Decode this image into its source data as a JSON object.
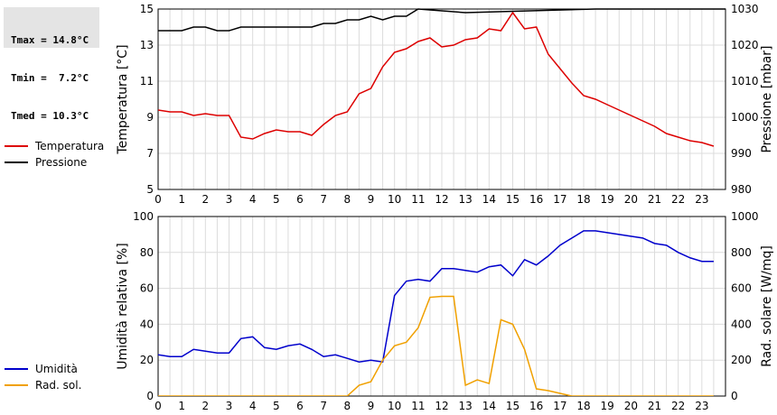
{
  "stats": {
    "tmax": "Tmax = 14.8°C",
    "tmin": "Tmin =  7.2°C",
    "tmed": "Tmed = 10.3°C"
  },
  "legend_top": [
    {
      "label": "Temperatura",
      "color": "#dd0000"
    },
    {
      "label": "Pressione",
      "color": "#000000"
    }
  ],
  "legend_bottom": [
    {
      "label": "Umidità",
      "color": "#0000cc"
    },
    {
      "label": "Rad. sol.",
      "color": "#f0a000"
    }
  ],
  "chart_data": [
    {
      "type": "line",
      "xlim": [
        0,
        24
      ],
      "x_ticks": [
        0,
        1,
        2,
        3,
        4,
        5,
        6,
        7,
        8,
        9,
        10,
        11,
        12,
        13,
        14,
        15,
        16,
        17,
        18,
        19,
        20,
        21,
        22,
        23
      ],
      "ylabel": "Temperatura [°C]",
      "ylim": [
        5,
        15
      ],
      "y_ticks": [
        5,
        7,
        9,
        11,
        13,
        15
      ],
      "y2label": "Pressione [mbar]",
      "y2lim": [
        980,
        1030
      ],
      "y2_ticks": [
        980,
        990,
        1000,
        1010,
        1020,
        1030
      ],
      "grid": true,
      "series": [
        {
          "name": "Temperatura",
          "axis": "left",
          "color": "#dd0000",
          "x": [
            0,
            0.5,
            1,
            1.5,
            2,
            2.5,
            3,
            3.5,
            4,
            4.5,
            5,
            5.5,
            6,
            6.5,
            7,
            7.5,
            8,
            8.5,
            9,
            9.5,
            10,
            10.5,
            11,
            11.5,
            12,
            12.5,
            13,
            13.5,
            14,
            14.5,
            15,
            15.5,
            16,
            16.5,
            17,
            17.5,
            18,
            18.5,
            19,
            19.5,
            20,
            20.5,
            21,
            21.5,
            22,
            22.5,
            23,
            23.5
          ],
          "values": [
            9.4,
            9.3,
            9.3,
            9.1,
            9.2,
            9.1,
            9.1,
            7.9,
            7.8,
            8.1,
            8.3,
            8.2,
            8.2,
            8.0,
            8.6,
            9.1,
            9.3,
            10.3,
            10.6,
            11.8,
            12.6,
            12.8,
            13.2,
            13.4,
            12.9,
            13.0,
            13.3,
            13.4,
            13.9,
            13.8,
            14.8,
            13.9,
            14.0,
            12.5,
            11.7,
            10.9,
            10.2,
            10.0,
            9.7,
            9.4,
            9.1,
            8.8,
            8.5,
            8.1,
            7.9,
            7.7,
            7.6,
            7.4
          ]
        },
        {
          "name": "Pressione",
          "axis": "right",
          "color": "#000000",
          "x": [
            0,
            1,
            1.5,
            2,
            2.5,
            3,
            3.5,
            6.5,
            7,
            7.5,
            8,
            8.5,
            9,
            9.5,
            10,
            10.5,
            11,
            13,
            18.5
          ],
          "values": [
            1024,
            1024,
            1025,
            1025,
            1024,
            1024,
            1025,
            1025,
            1026,
            1026,
            1027,
            1027,
            1028,
            1027,
            1028,
            1028,
            1030,
            1029,
            1030
          ]
        }
      ]
    },
    {
      "type": "line",
      "xlim": [
        0,
        24
      ],
      "x_ticks": [
        0,
        1,
        2,
        3,
        4,
        5,
        6,
        7,
        8,
        9,
        10,
        11,
        12,
        13,
        14,
        15,
        16,
        17,
        18,
        19,
        20,
        21,
        22,
        23
      ],
      "ylabel": "Umidità relativa [%]",
      "ylim": [
        0,
        100
      ],
      "y_ticks": [
        0,
        20,
        40,
        60,
        80,
        100
      ],
      "y2label": "Rad. solare [W/mq]",
      "y2lim": [
        0,
        1000
      ],
      "y2_ticks": [
        0,
        200,
        400,
        600,
        800,
        1000
      ],
      "grid": true,
      "series": [
        {
          "name": "Umidità",
          "axis": "left",
          "color": "#0000cc",
          "x": [
            0,
            0.5,
            1,
            1.5,
            2,
            2.5,
            3,
            3.5,
            4,
            4.5,
            5,
            5.5,
            6,
            6.5,
            7,
            7.5,
            8,
            8.5,
            9,
            9.5,
            10,
            10.5,
            11,
            11.5,
            12,
            12.5,
            13,
            13.5,
            14,
            14.5,
            15,
            15.5,
            16,
            16.5,
            17,
            17.5,
            18,
            18.5,
            19,
            19.5,
            20,
            20.5,
            21,
            21.5,
            22,
            22.5,
            23,
            23.5
          ],
          "values": [
            23,
            22,
            22,
            26,
            25,
            24,
            24,
            32,
            33,
            27,
            26,
            28,
            29,
            26,
            22,
            23,
            21,
            19,
            20,
            19,
            56,
            64,
            65,
            64,
            71,
            71,
            70,
            69,
            72,
            73,
            67,
            76,
            73,
            78,
            84,
            88,
            92,
            92,
            91,
            90,
            89,
            88,
            85,
            84,
            80,
            77,
            75,
            75
          ]
        },
        {
          "name": "Rad. sol.",
          "axis": "right",
          "color": "#f0a000",
          "x": [
            0,
            0.5,
            1,
            1.5,
            2,
            2.5,
            3,
            3.5,
            4,
            4.5,
            5,
            5.5,
            6,
            6.5,
            7,
            7.5,
            8,
            8.5,
            9,
            9.5,
            10,
            10.5,
            11,
            11.5,
            12,
            12.5,
            13,
            13.5,
            14,
            14.5,
            15,
            15.5,
            16,
            16.5,
            17,
            17.5,
            18,
            18.5,
            19,
            19.5,
            20,
            20.5,
            21,
            21.5,
            22,
            22.5,
            23,
            23.5
          ],
          "values": [
            0,
            0,
            0,
            0,
            0,
            0,
            0,
            0,
            0,
            0,
            0,
            0,
            0,
            0,
            0,
            0,
            0,
            60,
            80,
            200,
            280,
            300,
            380,
            550,
            555,
            555,
            60,
            90,
            70,
            425,
            400,
            260,
            40,
            30,
            15,
            0,
            0,
            0,
            0,
            0,
            0,
            0,
            0,
            0,
            0,
            0,
            0,
            0
          ]
        }
      ]
    }
  ]
}
